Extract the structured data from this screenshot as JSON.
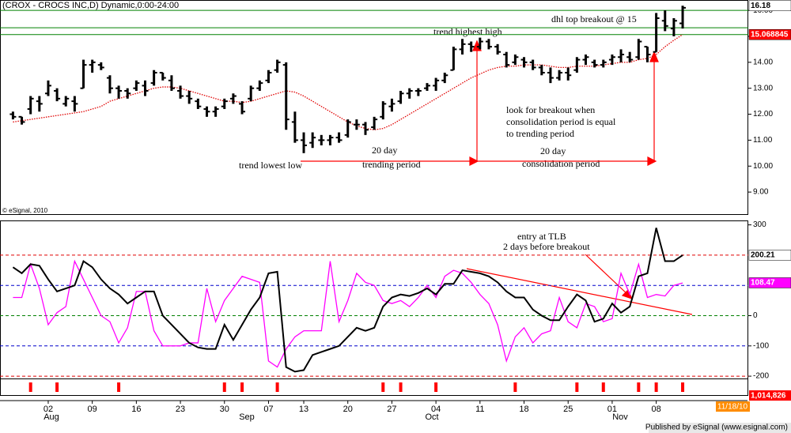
{
  "chart_data": [
    {
      "type": "ohlc",
      "title": "(CROX - CROCS INC,D) Dynamic,0:00-24:00",
      "categories": [
        null,
        null,
        null,
        null,
        "02",
        null,
        null,
        null,
        null,
        "09",
        null,
        null,
        null,
        null,
        "16",
        null,
        null,
        null,
        null,
        "23",
        null,
        null,
        null,
        null,
        "30",
        null,
        null,
        null,
        null,
        "07",
        null,
        null,
        null,
        "13",
        null,
        null,
        null,
        null,
        "20",
        null,
        null,
        null,
        null,
        "27",
        null,
        null,
        null,
        null,
        "04",
        null,
        null,
        null,
        null,
        "11",
        null,
        null,
        null,
        null,
        "18",
        null,
        null,
        null,
        null,
        "25",
        null,
        null,
        null,
        null,
        "01",
        null,
        null,
        null,
        null,
        "08",
        null,
        null,
        null
      ],
      "months": [
        "Aug",
        "Sep",
        "Oct",
        "Nov"
      ],
      "color": "#000000",
      "open": [
        12.0,
        11.9,
        12.2,
        12.5,
        12.8,
        12.9,
        12.4,
        12.5,
        13.0,
        13.9,
        13.9,
        13.4,
        13.0,
        12.9,
        13.0,
        13.1,
        13.2,
        13.6,
        13.3,
        12.9,
        12.7,
        12.5,
        12.2,
        12.1,
        12.3,
        12.6,
        12.4,
        12.6,
        13.0,
        13.3,
        13.7,
        13.9,
        11.7,
        11.0,
        10.9,
        11.0,
        11.0,
        11.1,
        11.2,
        11.6,
        11.6,
        11.5,
        11.9,
        12.3,
        12.5,
        12.8,
        12.9,
        13.0,
        13.1,
        13.3,
        13.7,
        14.5,
        14.7,
        14.6,
        14.8,
        14.6,
        14.3,
        14.0,
        14.1,
        14.0,
        13.8,
        13.6,
        13.4,
        13.6,
        13.7,
        14.1,
        14.0,
        13.9,
        14.1,
        14.2,
        14.2,
        14.2,
        14.6,
        14.4,
        15.6,
        15.3,
        15.5
      ],
      "high": [
        12.1,
        11.9,
        12.7,
        12.7,
        13.3,
        13.0,
        12.7,
        12.7,
        14.1,
        14.1,
        14.0,
        13.5,
        13.1,
        13.0,
        13.3,
        13.3,
        13.7,
        13.6,
        13.5,
        13.1,
        12.9,
        12.6,
        12.3,
        12.3,
        12.6,
        12.8,
        12.5,
        13.1,
        13.3,
        13.7,
        14.1,
        14.0,
        12.1,
        11.3,
        11.3,
        11.2,
        11.2,
        11.3,
        11.8,
        11.8,
        11.7,
        11.9,
        12.5,
        12.6,
        12.9,
        13.0,
        13.0,
        13.2,
        13.4,
        13.6,
        14.6,
        14.9,
        14.8,
        14.95,
        14.9,
        14.7,
        14.4,
        14.3,
        14.2,
        14.1,
        13.9,
        13.8,
        13.7,
        13.8,
        14.2,
        14.3,
        14.1,
        14.1,
        14.3,
        14.5,
        14.4,
        14.9,
        14.6,
        15.9,
        16.0,
        15.7,
        16.18
      ],
      "low": [
        11.8,
        11.6,
        12.0,
        12.1,
        12.7,
        12.5,
        12.3,
        12.1,
        13.0,
        13.6,
        13.7,
        12.8,
        12.6,
        12.6,
        12.9,
        12.7,
        13.1,
        13.3,
        12.9,
        12.6,
        12.4,
        12.2,
        11.9,
        11.9,
        12.2,
        12.4,
        12.0,
        12.5,
        12.9,
        13.2,
        13.6,
        11.4,
        10.9,
        10.5,
        10.7,
        10.8,
        10.8,
        10.9,
        11.1,
        11.4,
        11.2,
        11.4,
        11.8,
        12.1,
        12.4,
        12.6,
        12.7,
        12.9,
        12.9,
        13.2,
        13.7,
        14.3,
        14.4,
        14.5,
        14.5,
        14.3,
        13.8,
        13.9,
        13.8,
        13.7,
        13.5,
        13.2,
        13.3,
        13.3,
        13.6,
        13.9,
        13.8,
        13.8,
        13.9,
        14.0,
        14.0,
        14.1,
        14.0,
        14.4,
        15.2,
        15.0,
        15.3
      ],
      "close": [
        11.9,
        11.7,
        12.6,
        12.4,
        13.1,
        12.6,
        12.6,
        12.4,
        13.9,
        14.0,
        13.8,
        13.0,
        12.9,
        12.8,
        13.2,
        12.9,
        13.6,
        13.4,
        13.0,
        12.7,
        12.6,
        12.3,
        12.1,
        12.2,
        12.5,
        12.7,
        12.1,
        13.0,
        13.2,
        13.6,
        14.0,
        11.8,
        11.0,
        10.8,
        11.1,
        11.0,
        11.1,
        11.0,
        11.7,
        11.6,
        11.4,
        11.8,
        12.4,
        12.4,
        12.8,
        12.9,
        12.9,
        13.1,
        13.3,
        13.5,
        14.5,
        14.7,
        14.6,
        14.8,
        14.6,
        14.4,
        13.9,
        14.2,
        14.0,
        13.8,
        13.6,
        13.4,
        13.6,
        13.5,
        14.1,
        14.2,
        13.9,
        14.0,
        14.2,
        14.3,
        14.1,
        14.8,
        14.3,
        15.7,
        15.4,
        15.6,
        16.1
      ],
      "ma": {
        "color": "#e00000",
        "values": [
          11.7,
          11.75,
          11.8,
          11.85,
          11.9,
          11.95,
          12.0,
          12.05,
          12.1,
          12.2,
          12.3,
          12.5,
          12.6,
          12.7,
          12.8,
          12.9,
          13.0,
          13.05,
          13.05,
          13.0,
          12.9,
          12.8,
          12.7,
          12.6,
          12.5,
          12.5,
          12.45,
          12.5,
          12.6,
          12.7,
          12.8,
          12.9,
          12.85,
          12.7,
          12.5,
          12.3,
          12.1,
          11.9,
          11.7,
          11.55,
          11.45,
          11.4,
          11.45,
          11.6,
          11.8,
          12.0,
          12.2,
          12.4,
          12.6,
          12.8,
          13.0,
          13.2,
          13.4,
          13.55,
          13.7,
          13.8,
          13.85,
          13.85,
          13.9,
          13.9,
          13.9,
          13.85,
          13.8,
          13.8,
          13.85,
          13.85,
          13.85,
          13.9,
          13.95,
          14.0,
          14.0,
          14.1,
          14.15,
          14.3,
          14.6,
          14.85,
          15.07
        ]
      },
      "ylim": [
        8.12,
        16.4
      ],
      "yticks": [
        {
          "value": 16,
          "label": "16.00"
        },
        {
          "value": 15,
          "label": "15.00"
        },
        {
          "value": 14,
          "label": "14.00"
        },
        {
          "value": 13,
          "label": "13.00"
        },
        {
          "value": 12,
          "label": "12.00"
        },
        {
          "value": 11,
          "label": "11.00"
        },
        {
          "value": 10,
          "label": "10.00"
        },
        {
          "value": 9,
          "label": "9.00"
        }
      ],
      "hlines": {
        "color": "#008000",
        "values": [
          16.0,
          15.33,
          15.068845
        ]
      },
      "last_values": [
        {
          "value": 16.18,
          "color": "#ffffff",
          "text_color": "#000000"
        },
        {
          "value": 15.068845,
          "color": "#ff0000",
          "text_color": "#ffffff"
        }
      ],
      "annotations": [
        "dhl top breakout  @ 15",
        "trend highest high",
        "look for breakout when",
        "consolidation period is equal",
        "to trending period",
        "trend lowest low",
        "20 day",
        "trending period",
        "20 day",
        "consolidation period"
      ],
      "copyright": "© eSignal, 2010",
      "date_box": "11/18/10"
    },
    {
      "type": "line",
      "series": [
        {
          "color": "#000000",
          "values": [
            160,
            140,
            170,
            165,
            120,
            80,
            90,
            100,
            180,
            160,
            120,
            90,
            70,
            40,
            60,
            80,
            80,
            0,
            -30,
            -60,
            -90,
            -105,
            -110,
            -110,
            -30,
            -80,
            -30,
            20,
            60,
            140,
            145,
            -170,
            -185,
            -180,
            -130,
            -120,
            -110,
            -100,
            -70,
            -40,
            -50,
            -40,
            30,
            60,
            70,
            65,
            75,
            90,
            70,
            105,
            105,
            150,
            145,
            140,
            130,
            110,
            80,
            60,
            60,
            20,
            0,
            -15,
            -15,
            30,
            70,
            50,
            -20,
            -10,
            40,
            10,
            30,
            130,
            140,
            290,
            180,
            180,
            200
          ]
        },
        {
          "color": "#ff00ff",
          "values": [
            60,
            60,
            170,
            90,
            -30,
            10,
            30,
            180,
            120,
            60,
            0,
            -20,
            -90,
            -40,
            80,
            80,
            -50,
            -100,
            -100,
            -100,
            -90,
            -90,
            90,
            -20,
            50,
            90,
            130,
            120,
            110,
            -150,
            -170,
            -110,
            -70,
            -50,
            -50,
            -50,
            180,
            -20,
            50,
            140,
            110,
            100,
            50,
            40,
            50,
            30,
            60,
            100,
            60,
            130,
            150,
            140,
            110,
            70,
            40,
            -30,
            -150,
            -70,
            -40,
            -90,
            -60,
            -50,
            60,
            -20,
            -40,
            40,
            30,
            -20,
            -10,
            140,
            70,
            170,
            60,
            70,
            65,
            100,
            108
          ]
        }
      ],
      "ylim": [
        -205,
        312
      ],
      "yticks": [
        300,
        0,
        -100,
        -200
      ],
      "levels": [
        {
          "value": 200,
          "color": "#e00000"
        },
        {
          "value": 100,
          "color": "#0000cc"
        },
        {
          "value": 0,
          "color": "#008000"
        },
        {
          "value": -100,
          "color": "#0000cc"
        },
        {
          "value": -200,
          "color": "#e00000"
        }
      ],
      "last_values": [
        {
          "value": 200.21,
          "color": "#ffffff",
          "text_color": "#000000"
        },
        {
          "value": 108.47,
          "color": "#ff00ff",
          "text_color": "#ffffff"
        }
      ],
      "annotations": [
        "entry at TLB",
        "2 days before breakout"
      ]
    },
    {
      "type": "marker",
      "color": "#ff0000",
      "bars": [
        2,
        5,
        12,
        24,
        26,
        30,
        42,
        44,
        48,
        57,
        64,
        67,
        71,
        73,
        76
      ],
      "last_value": {
        "value": 1014826,
        "label": "1,014,826"
      }
    }
  ],
  "footer": "Published by eSignal (www.esignal.com)"
}
